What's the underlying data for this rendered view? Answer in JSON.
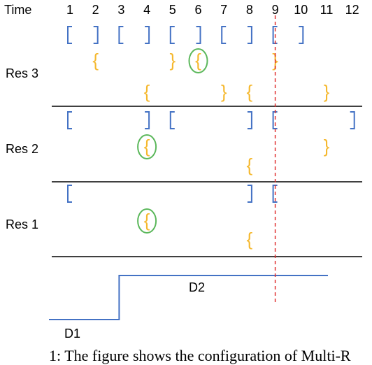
{
  "header": {
    "time_label": "Time",
    "ticks": [
      "1",
      "2",
      "3",
      "4",
      "5",
      "6",
      "7",
      "8",
      "9",
      "10",
      "11",
      "12"
    ]
  },
  "rows": [
    {
      "label": "Res 3"
    },
    {
      "label": "Res 2"
    },
    {
      "label": "Res 1"
    }
  ],
  "demand": {
    "label_before": "D1",
    "label_after": "D2"
  },
  "caption": "1: The figure shows the configuration of Multi-R",
  "colors": {
    "square_bracket": "#4472c4",
    "curly_brace": "#f5b82e",
    "highlight_circle": "#5cb85c",
    "now_line": "#e03030",
    "demand_line": "#4472c4"
  },
  "marks": {
    "res3": {
      "square": [
        {
          "t": 1,
          "side": "open"
        },
        {
          "t": 2,
          "side": "close"
        },
        {
          "t": 3,
          "side": "open"
        },
        {
          "t": 4,
          "side": "close"
        },
        {
          "t": 5,
          "side": "open"
        },
        {
          "t": 6,
          "side": "close"
        },
        {
          "t": 7,
          "side": "open"
        },
        {
          "t": 8,
          "side": "close"
        },
        {
          "t": 9,
          "side": "open"
        },
        {
          "t": 10,
          "side": "close"
        }
      ],
      "curly_upper": [
        {
          "t": 2,
          "side": "open"
        },
        {
          "t": 5,
          "side": "close"
        },
        {
          "t": 6,
          "side": "open",
          "highlighted": true
        },
        {
          "t": 9,
          "side": "close"
        }
      ],
      "curly_lower": [
        {
          "t": 4,
          "side": "open"
        },
        {
          "t": 7,
          "side": "close"
        },
        {
          "t": 8,
          "side": "open"
        },
        {
          "t": 11,
          "side": "close"
        }
      ]
    },
    "res2": {
      "square": [
        {
          "t": 1,
          "side": "open"
        },
        {
          "t": 4,
          "side": "close"
        },
        {
          "t": 5,
          "side": "open"
        },
        {
          "t": 8,
          "side": "close"
        },
        {
          "t": 9,
          "side": "open"
        },
        {
          "t": 12,
          "side": "close"
        }
      ],
      "curly_upper": [
        {
          "t": 4,
          "side": "open",
          "highlighted": true
        },
        {
          "t": 11,
          "side": "close"
        }
      ],
      "curly_lower": [
        {
          "t": 8,
          "side": "open"
        }
      ]
    },
    "res1": {
      "square": [
        {
          "t": 1,
          "side": "open"
        },
        {
          "t": 8,
          "side": "close"
        },
        {
          "t": 9,
          "side": "open"
        }
      ],
      "curly_upper": [
        {
          "t": 4,
          "side": "open",
          "highlighted": true
        }
      ],
      "curly_lower": [
        {
          "t": 8,
          "side": "open"
        }
      ]
    }
  },
  "current_time": 9,
  "demand_step": {
    "t_step": 3,
    "t_end": 11
  }
}
